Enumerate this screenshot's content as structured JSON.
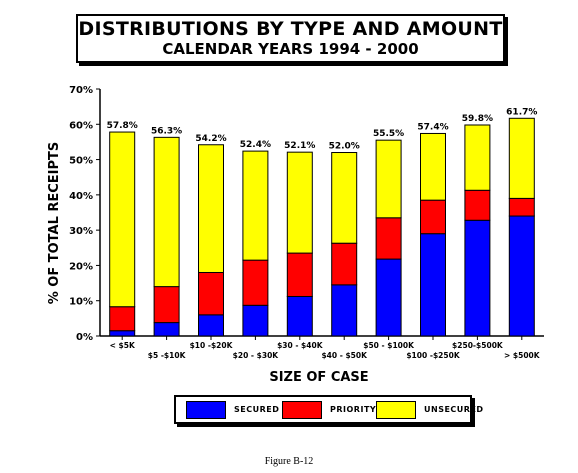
{
  "figure_caption": "Figure B-12",
  "colors": {
    "secured": "#0000ff",
    "priority": "#ff0000",
    "unsecured": "#ffff00"
  },
  "chart_data": {
    "type": "bar",
    "stacked": true,
    "title": "DISTRIBUTIONS BY TYPE AND AMOUNT",
    "subtitle": "CALENDAR YEARS 1994 - 2000",
    "xlabel": "SIZE OF CASE",
    "ylabel": "% OF TOTAL RECEIPTS",
    "ylim": [
      0,
      70
    ],
    "yticks": [
      "0%",
      "10%",
      "20%",
      "30%",
      "40%",
      "50%",
      "60%",
      "70%"
    ],
    "grid": false,
    "legend_position": "bottom",
    "categories": [
      "< $5K",
      "$5 -$10K",
      "$10 -$20K",
      "$20 - $30K",
      "$30 - $40K",
      "$40 - $50K",
      "$50 - $100K",
      "$100 -$250K",
      "$250-$500K",
      "> $500K"
    ],
    "totals": [
      "57.8%",
      "56.3%",
      "54.2%",
      "52.4%",
      "52.1%",
      "52.0%",
      "55.5%",
      "57.4%",
      "59.8%",
      "61.7%"
    ],
    "series": [
      {
        "name": "SECURED",
        "values": [
          1.5,
          3.8,
          6.0,
          8.7,
          11.2,
          14.5,
          21.8,
          29.0,
          32.8,
          34.0
        ]
      },
      {
        "name": "PRIORITY",
        "values": [
          6.8,
          10.2,
          12.0,
          12.8,
          12.3,
          11.8,
          11.7,
          9.5,
          8.5,
          5.0
        ]
      },
      {
        "name": "UNSECURED",
        "values": [
          49.5,
          42.3,
          36.2,
          30.9,
          28.6,
          25.7,
          22.0,
          18.9,
          18.5,
          22.7
        ]
      }
    ]
  }
}
